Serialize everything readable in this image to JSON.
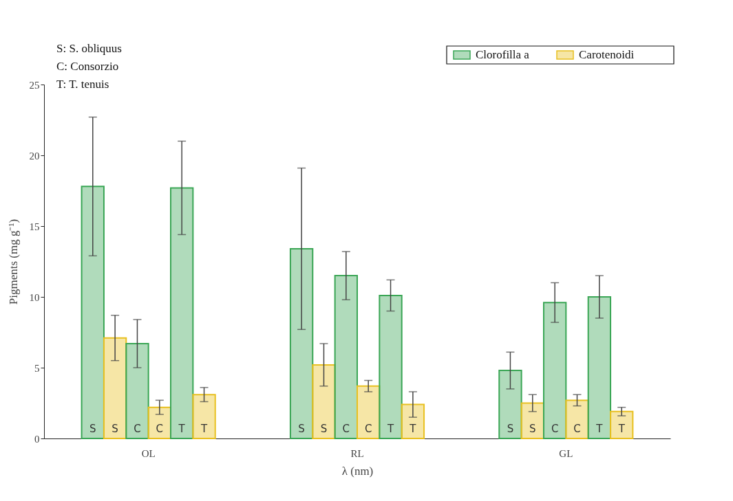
{
  "chart_data": {
    "type": "bar",
    "xlabel": "λ (nm)",
    "ylabel": "Pigments (mg g⁻¹)",
    "categories": [
      "OL",
      "RL",
      "GL"
    ],
    "ylim": [
      0,
      25
    ],
    "yticks": [
      0,
      5,
      10,
      15,
      20,
      25
    ],
    "grid": false,
    "legend": "top right",
    "annotations": [
      "S: S. obliquus",
      "C: Consorzio",
      "T: T. tenuis"
    ],
    "series": [
      {
        "name": "Clorofilla a",
        "color": "#3aa655",
        "values": [
          17.8,
          13.4,
          4.8
        ],
        "errors": [
          4.9,
          5.7,
          1.3
        ],
        "value_labels": [
          "S",
          "S",
          "S"
        ]
      },
      {
        "name": "Carotenoidi",
        "color": "#e8c020",
        "values": [
          7.1,
          5.2,
          2.5
        ],
        "errors": [
          1.6,
          1.5,
          0.6
        ],
        "value_labels": [
          "S",
          "S",
          "S"
        ]
      },
      {
        "color": "#3aa655",
        "values": [
          6.7,
          11.5,
          9.6
        ],
        "errors": [
          1.7,
          1.7,
          1.4
        ],
        "value_labels": [
          "C",
          "C",
          "C"
        ]
      },
      {
        "color": "#e8c020",
        "values": [
          2.2,
          3.7,
          2.7
        ],
        "errors": [
          0.5,
          0.4,
          0.4
        ],
        "value_labels": [
          "C",
          "C",
          "C"
        ]
      },
      {
        "color": "#3aa655",
        "values": [
          17.7,
          10.1,
          10.0
        ],
        "errors": [
          3.3,
          1.1,
          1.5
        ],
        "value_labels": [
          "T",
          "T",
          "T"
        ]
      },
      {
        "color": "#e8c020",
        "values": [
          3.1,
          2.4,
          1.9
        ],
        "errors": [
          0.5,
          0.9,
          0.3
        ],
        "value_labels": [
          "T",
          "T",
          "T"
        ]
      }
    ]
  }
}
